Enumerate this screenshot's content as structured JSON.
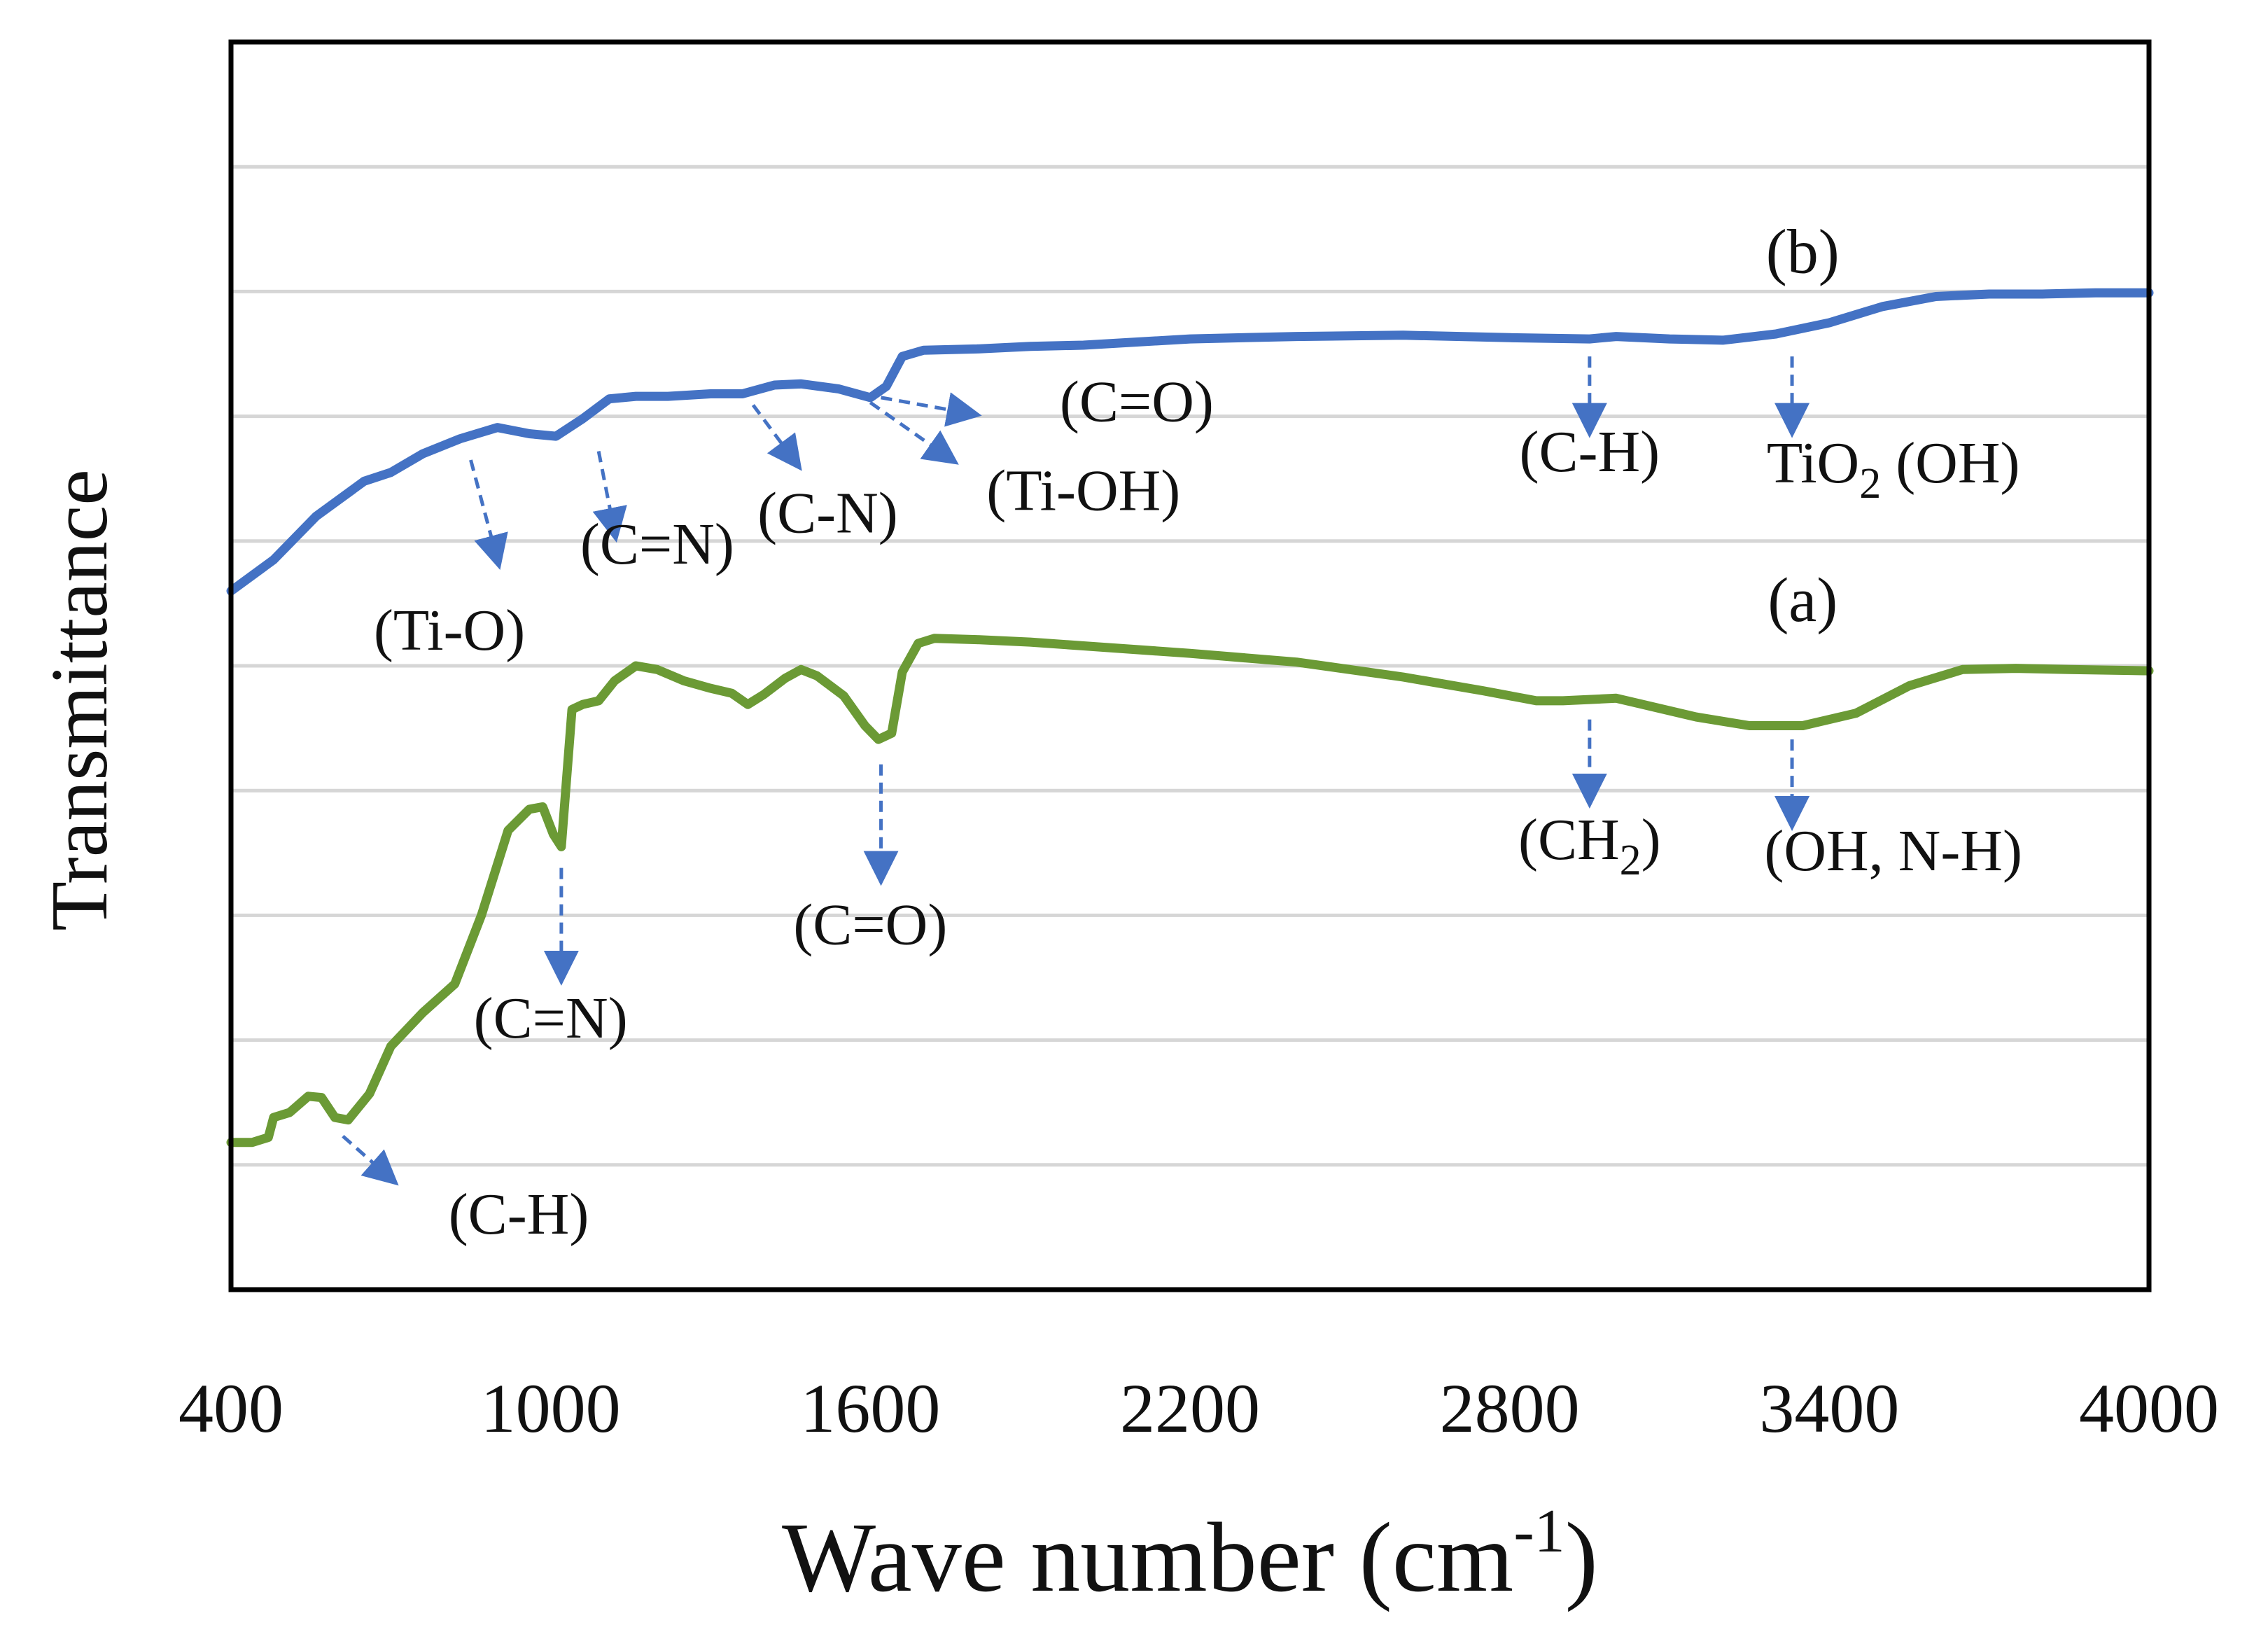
{
  "chart_data": {
    "type": "line",
    "title": "",
    "xlabel_main": "Wave number (cm",
    "xlabel_sup": "-1",
    "xlabel_close": ")",
    "ylabel": "Transmittance",
    "xlim": [
      400,
      4000
    ],
    "ylim": [
      0,
      100
    ],
    "x_ticks": [
      "400",
      "1000",
      "1600",
      "2200",
      "2800",
      "3400",
      "4000"
    ],
    "x_tick_values": [
      400,
      1000,
      1600,
      2200,
      2800,
      3400,
      4000
    ],
    "y_gridlines": [
      10,
      20,
      30,
      40,
      50,
      60,
      70,
      80,
      90
    ],
    "grid": true,
    "legend": "none",
    "series": [
      {
        "name": "(b)",
        "color": "#4472C4",
        "points": [
          [
            400,
            56
          ],
          [
            480,
            58.5
          ],
          [
            560,
            62
          ],
          [
            650,
            64.8
          ],
          [
            700,
            65.5
          ],
          [
            760,
            67
          ],
          [
            830,
            68.2
          ],
          [
            900,
            69.1
          ],
          [
            960,
            68.6
          ],
          [
            1010,
            68.4
          ],
          [
            1060,
            69.8
          ],
          [
            1110,
            71.4
          ],
          [
            1160,
            71.6
          ],
          [
            1220,
            71.6
          ],
          [
            1300,
            71.8
          ],
          [
            1360,
            71.8
          ],
          [
            1420,
            72.5
          ],
          [
            1470,
            72.6
          ],
          [
            1540,
            72.2
          ],
          [
            1600,
            71.5
          ],
          [
            1630,
            72.4
          ],
          [
            1660,
            74.8
          ],
          [
            1700,
            75.3
          ],
          [
            1800,
            75.4
          ],
          [
            1900,
            75.6
          ],
          [
            2000,
            75.7
          ],
          [
            2200,
            76.2
          ],
          [
            2400,
            76.4
          ],
          [
            2600,
            76.5
          ],
          [
            2800,
            76.3
          ],
          [
            2950,
            76.2
          ],
          [
            3000,
            76.4
          ],
          [
            3100,
            76.2
          ],
          [
            3200,
            76.1
          ],
          [
            3300,
            76.6
          ],
          [
            3400,
            77.5
          ],
          [
            3500,
            78.8
          ],
          [
            3600,
            79.6
          ],
          [
            3700,
            79.8
          ],
          [
            3800,
            79.8
          ],
          [
            3900,
            79.9
          ],
          [
            4000,
            79.9
          ]
        ]
      },
      {
        "name": "(a)",
        "color": "#6B9A35",
        "points": [
          [
            400,
            11.8
          ],
          [
            440,
            11.8
          ],
          [
            470,
            12.2
          ],
          [
            480,
            13.8
          ],
          [
            510,
            14.2
          ],
          [
            545,
            15.5
          ],
          [
            570,
            15.4
          ],
          [
            595,
            13.8
          ],
          [
            620,
            13.6
          ],
          [
            660,
            15.7
          ],
          [
            700,
            19.5
          ],
          [
            760,
            22.2
          ],
          [
            820,
            24.5
          ],
          [
            870,
            30
          ],
          [
            920,
            36.8
          ],
          [
            960,
            38.5
          ],
          [
            985,
            38.7
          ],
          [
            1005,
            36.5
          ],
          [
            1020,
            35.5
          ],
          [
            1040,
            46.5
          ],
          [
            1060,
            46.9
          ],
          [
            1090,
            47.2
          ],
          [
            1120,
            48.8
          ],
          [
            1160,
            50
          ],
          [
            1200,
            49.7
          ],
          [
            1250,
            48.8
          ],
          [
            1300,
            48.2
          ],
          [
            1340,
            47.8
          ],
          [
            1370,
            46.9
          ],
          [
            1400,
            47.7
          ],
          [
            1440,
            49
          ],
          [
            1470,
            49.7
          ],
          [
            1500,
            49.2
          ],
          [
            1550,
            47.6
          ],
          [
            1590,
            45.2
          ],
          [
            1615,
            44.1
          ],
          [
            1640,
            44.6
          ],
          [
            1660,
            49.5
          ],
          [
            1690,
            51.8
          ],
          [
            1720,
            52.2
          ],
          [
            1800,
            52.1
          ],
          [
            1900,
            51.9
          ],
          [
            2000,
            51.6
          ],
          [
            2200,
            51
          ],
          [
            2400,
            50.3
          ],
          [
            2600,
            49.1
          ],
          [
            2750,
            48
          ],
          [
            2850,
            47.2
          ],
          [
            2900,
            47.2
          ],
          [
            2950,
            47.3
          ],
          [
            3000,
            47.4
          ],
          [
            3050,
            46.9
          ],
          [
            3150,
            45.9
          ],
          [
            3250,
            45.2
          ],
          [
            3350,
            45.2
          ],
          [
            3450,
            46.2
          ],
          [
            3550,
            48.4
          ],
          [
            3650,
            49.7
          ],
          [
            3750,
            49.8
          ],
          [
            3850,
            49.7
          ],
          [
            4000,
            49.6
          ]
        ]
      }
    ],
    "curve_labels": [
      {
        "text": "(b)",
        "x": 3350,
        "y": 81.5
      },
      {
        "text": "(a)",
        "x": 3350,
        "y": 53.6
      }
    ],
    "annotations": [
      {
        "text": "(Ti-O)",
        "x": 810,
        "y": 51.3,
        "ax": 850,
        "ay": 66.5,
        "bx": 900,
        "by": 58.5
      },
      {
        "text": "(C=N)",
        "x": 1200,
        "y": 58.2,
        "ax": 1090,
        "ay": 67.2,
        "bx": 1120,
        "by": 60.7
      },
      {
        "text": "(C-N)",
        "x": 1520,
        "y": 60.7,
        "ax": 1380,
        "ay": 70.9,
        "bx": 1460,
        "by": 66.3
      },
      {
        "text": "(Ti-OH)",
        "x": 2000,
        "y": 62.5,
        "ax": 1600,
        "ay": 71.1,
        "bx": 1750,
        "by": 66.6
      },
      {
        "text": "(C=O)",
        "x": 2100,
        "y": 69.6,
        "ax": 1620,
        "ay": 71.5,
        "bx": 1790,
        "by": 70.2
      },
      {
        "text": "(C-H)",
        "x": 2950,
        "y": 65.6,
        "ax": 2950,
        "ay": 74.8,
        "bx": 2950,
        "by": 69.1
      },
      {
        "text_main": "TiO",
        "text_sub": "2",
        "text_tail": " (OH)",
        "x": 3520,
        "y": 64.7,
        "ax": 3330,
        "ay": 74.8,
        "bx": 3330,
        "by": 69.1
      },
      {
        "text_main": "(CH",
        "text_sub": "2",
        "text_tail": ")",
        "x": 2950,
        "y": 34.5,
        "ax": 2950,
        "ay": 45.7,
        "bx": 2950,
        "by": 39.4
      },
      {
        "text": "(OH, N-H)",
        "x": 3520,
        "y": 33.6,
        "ax": 3330,
        "ay": 44.1,
        "bx": 3330,
        "by": 37.6
      },
      {
        "text": "(C=O)",
        "x": 1600,
        "y": 27.7,
        "ax": 1620,
        "ay": 42.1,
        "bx": 1620,
        "by": 33.2
      },
      {
        "text": "(C=N)",
        "x": 1000,
        "y": 20.2,
        "ax": 1020,
        "ay": 33.8,
        "bx": 1020,
        "by": 25.2
      },
      {
        "text": "(C-H)",
        "x": 940,
        "y": 4.5,
        "ax": 610,
        "ay": 12.3,
        "bx": 700,
        "by": 8.9
      }
    ],
    "arrow_color": "#4472C4"
  }
}
